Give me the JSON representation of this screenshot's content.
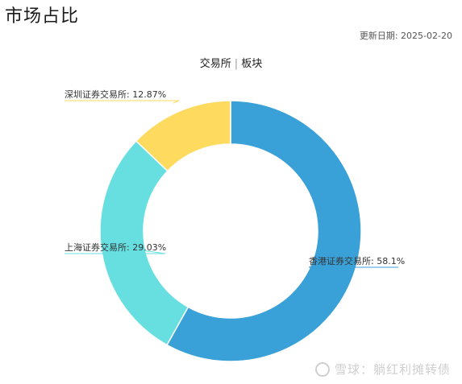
{
  "header": {
    "title": "市场占比",
    "update_date": "更新日期: 2025-02-20"
  },
  "tabs": [
    {
      "label": "交易所",
      "active": true
    },
    {
      "label": "板块",
      "active": false
    }
  ],
  "watermark": "雪球：躺红利摊转债",
  "chart_data": {
    "type": "pie",
    "variant": "donut",
    "categories": [
      "香港证券交易所",
      "上海证券交易所",
      "深圳证券交易所"
    ],
    "values": [
      58.1,
      29.03,
      12.87
    ],
    "labels": [
      "香港证券交易所: 58.1%",
      "上海证券交易所: 29.03%",
      "深圳证券交易所: 12.87%"
    ],
    "colors": [
      "#3aa1d8",
      "#67dfe1",
      "#fedb5e"
    ],
    "start": "top, clockwise"
  }
}
